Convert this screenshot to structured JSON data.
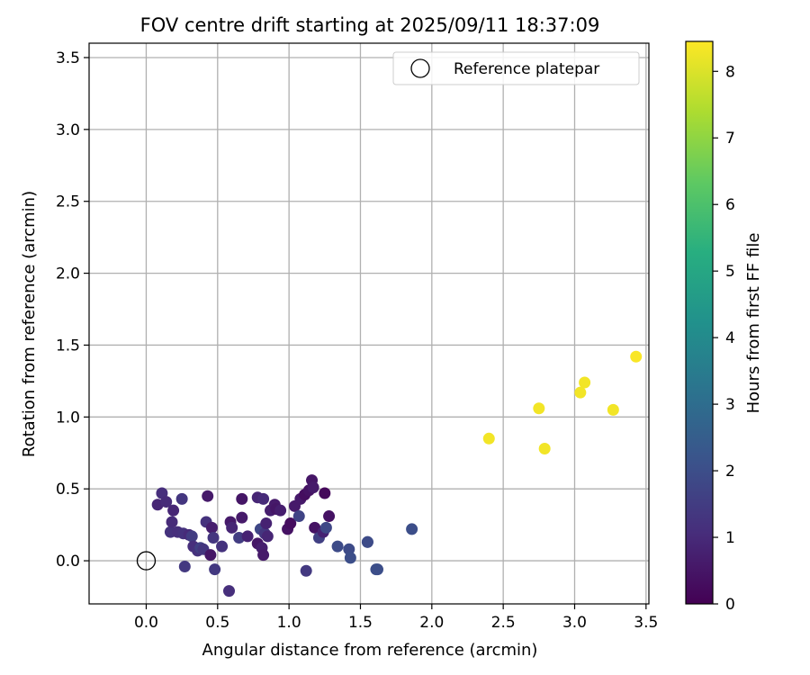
{
  "chart_data": {
    "type": "scatter",
    "title": "FOV centre drift starting at 2025/09/11 18:37:09",
    "xlabel": "Angular distance from reference (arcmin)",
    "ylabel": "Rotation from reference (arcmin)",
    "xlim": [
      -0.4,
      3.52
    ],
    "ylim": [
      -0.3,
      3.6
    ],
    "x_ticks": [
      "0.0",
      "0.5",
      "1.0",
      "1.5",
      "2.0",
      "2.5",
      "3.0",
      "3.5"
    ],
    "x_tick_values": [
      0,
      0.5,
      1.0,
      1.5,
      2.0,
      2.5,
      3.0,
      3.5
    ],
    "y_ticks": [
      "0.0",
      "0.5",
      "1.0",
      "1.5",
      "2.0",
      "2.5",
      "3.0",
      "3.5"
    ],
    "y_tick_values": [
      0,
      0.5,
      1.0,
      1.5,
      2.0,
      2.5,
      3.0,
      3.5
    ],
    "grid": true,
    "legend": {
      "position": "top-right",
      "entries": [
        "Reference platepar"
      ]
    },
    "reference_point": {
      "x": 0.0,
      "y": 0.0
    },
    "colorbar": {
      "label": "Hours from first FF file",
      "colormap": "viridis",
      "range": [
        0,
        8.45
      ],
      "ticks": [
        "0",
        "1",
        "2",
        "3",
        "4",
        "5",
        "6",
        "7",
        "8"
      ],
      "tick_values": [
        0,
        1,
        2,
        3,
        4,
        5,
        6,
        7,
        8
      ]
    },
    "points": [
      {
        "x": 0.08,
        "y": 0.39,
        "h": 0.9
      },
      {
        "x": 0.11,
        "y": 0.47,
        "h": 1.1
      },
      {
        "x": 0.14,
        "y": 0.41,
        "h": 1.0
      },
      {
        "x": 0.17,
        "y": 0.2,
        "h": 1.2
      },
      {
        "x": 0.18,
        "y": 0.27,
        "h": 1.0
      },
      {
        "x": 0.19,
        "y": 0.35,
        "h": 0.9
      },
      {
        "x": 0.22,
        "y": 0.2,
        "h": 1.1
      },
      {
        "x": 0.25,
        "y": 0.43,
        "h": 1.3
      },
      {
        "x": 0.26,
        "y": 0.19,
        "h": 1.2
      },
      {
        "x": 0.27,
        "y": -0.04,
        "h": 1.4
      },
      {
        "x": 0.3,
        "y": 0.18,
        "h": 1.0
      },
      {
        "x": 0.32,
        "y": 0.17,
        "h": 1.5
      },
      {
        "x": 0.33,
        "y": 0.1,
        "h": 1.1
      },
      {
        "x": 0.36,
        "y": 0.07,
        "h": 1.2
      },
      {
        "x": 0.38,
        "y": 0.09,
        "h": 1.6
      },
      {
        "x": 0.4,
        "y": 0.08,
        "h": 1.3
      },
      {
        "x": 0.42,
        "y": 0.27,
        "h": 1.2
      },
      {
        "x": 0.43,
        "y": 0.45,
        "h": 0.6
      },
      {
        "x": 0.45,
        "y": 0.04,
        "h": 0.5
      },
      {
        "x": 0.46,
        "y": 0.23,
        "h": 0.7
      },
      {
        "x": 0.47,
        "y": 0.16,
        "h": 1.3
      },
      {
        "x": 0.48,
        "y": -0.06,
        "h": 1.4
      },
      {
        "x": 0.53,
        "y": 0.1,
        "h": 1.2
      },
      {
        "x": 0.58,
        "y": -0.21,
        "h": 1.1
      },
      {
        "x": 0.59,
        "y": 0.27,
        "h": 0.6
      },
      {
        "x": 0.6,
        "y": 0.23,
        "h": 0.9
      },
      {
        "x": 0.65,
        "y": 0.16,
        "h": 1.5
      },
      {
        "x": 0.67,
        "y": 0.43,
        "h": 0.5
      },
      {
        "x": 0.67,
        "y": 0.3,
        "h": 0.6
      },
      {
        "x": 0.71,
        "y": 0.17,
        "h": 0.8
      },
      {
        "x": 0.78,
        "y": 0.44,
        "h": 0.9
      },
      {
        "x": 0.78,
        "y": 0.12,
        "h": 0.5
      },
      {
        "x": 0.8,
        "y": 0.22,
        "h": 1.8
      },
      {
        "x": 0.81,
        "y": 0.09,
        "h": 0.7
      },
      {
        "x": 0.82,
        "y": 0.43,
        "h": 1.0
      },
      {
        "x": 0.82,
        "y": 0.04,
        "h": 0.6
      },
      {
        "x": 0.83,
        "y": 0.19,
        "h": 1.3
      },
      {
        "x": 0.84,
        "y": 0.26,
        "h": 0.8
      },
      {
        "x": 0.85,
        "y": 0.17,
        "h": 0.9
      },
      {
        "x": 0.87,
        "y": 0.35,
        "h": 0.7
      },
      {
        "x": 0.9,
        "y": 0.39,
        "h": 0.6
      },
      {
        "x": 0.91,
        "y": 0.36,
        "h": 0.5
      },
      {
        "x": 0.94,
        "y": 0.35,
        "h": 0.7
      },
      {
        "x": 0.99,
        "y": 0.22,
        "h": 0.4
      },
      {
        "x": 1.01,
        "y": 0.26,
        "h": 0.3
      },
      {
        "x": 1.04,
        "y": 0.38,
        "h": 0.6
      },
      {
        "x": 1.07,
        "y": 0.31,
        "h": 1.7
      },
      {
        "x": 1.08,
        "y": 0.43,
        "h": 0.6
      },
      {
        "x": 1.11,
        "y": 0.46,
        "h": 0.3
      },
      {
        "x": 1.12,
        "y": -0.07,
        "h": 1.4
      },
      {
        "x": 1.14,
        "y": 0.49,
        "h": 0.4
      },
      {
        "x": 1.16,
        "y": 0.56,
        "h": 0.5
      },
      {
        "x": 1.17,
        "y": 0.51,
        "h": 0.6
      },
      {
        "x": 1.18,
        "y": 0.23,
        "h": 0.4
      },
      {
        "x": 1.21,
        "y": 0.16,
        "h": 1.6
      },
      {
        "x": 1.24,
        "y": 0.2,
        "h": 0.8
      },
      {
        "x": 1.25,
        "y": 0.47,
        "h": 0.2
      },
      {
        "x": 1.26,
        "y": 0.23,
        "h": 1.8
      },
      {
        "x": 1.28,
        "y": 0.31,
        "h": 0.4
      },
      {
        "x": 1.34,
        "y": 0.1,
        "h": 1.9
      },
      {
        "x": 1.42,
        "y": 0.08,
        "h": 1.9
      },
      {
        "x": 1.43,
        "y": 0.02,
        "h": 2.0
      },
      {
        "x": 1.55,
        "y": 0.13,
        "h": 2.0
      },
      {
        "x": 1.55,
        "y": 0.13,
        "h": 1.9
      },
      {
        "x": 1.61,
        "y": -0.06,
        "h": 2.0
      },
      {
        "x": 1.62,
        "y": -0.06,
        "h": 2.0
      },
      {
        "x": 1.86,
        "y": 0.22,
        "h": 2.0
      },
      {
        "x": 2.4,
        "y": 0.85,
        "h": 8.3
      },
      {
        "x": 2.75,
        "y": 1.06,
        "h": 8.3
      },
      {
        "x": 2.79,
        "y": 0.78,
        "h": 8.3
      },
      {
        "x": 3.04,
        "y": 1.17,
        "h": 8.3
      },
      {
        "x": 3.07,
        "y": 1.24,
        "h": 8.3
      },
      {
        "x": 3.27,
        "y": 1.05,
        "h": 8.3
      },
      {
        "x": 3.43,
        "y": 1.42,
        "h": 8.4
      }
    ]
  }
}
